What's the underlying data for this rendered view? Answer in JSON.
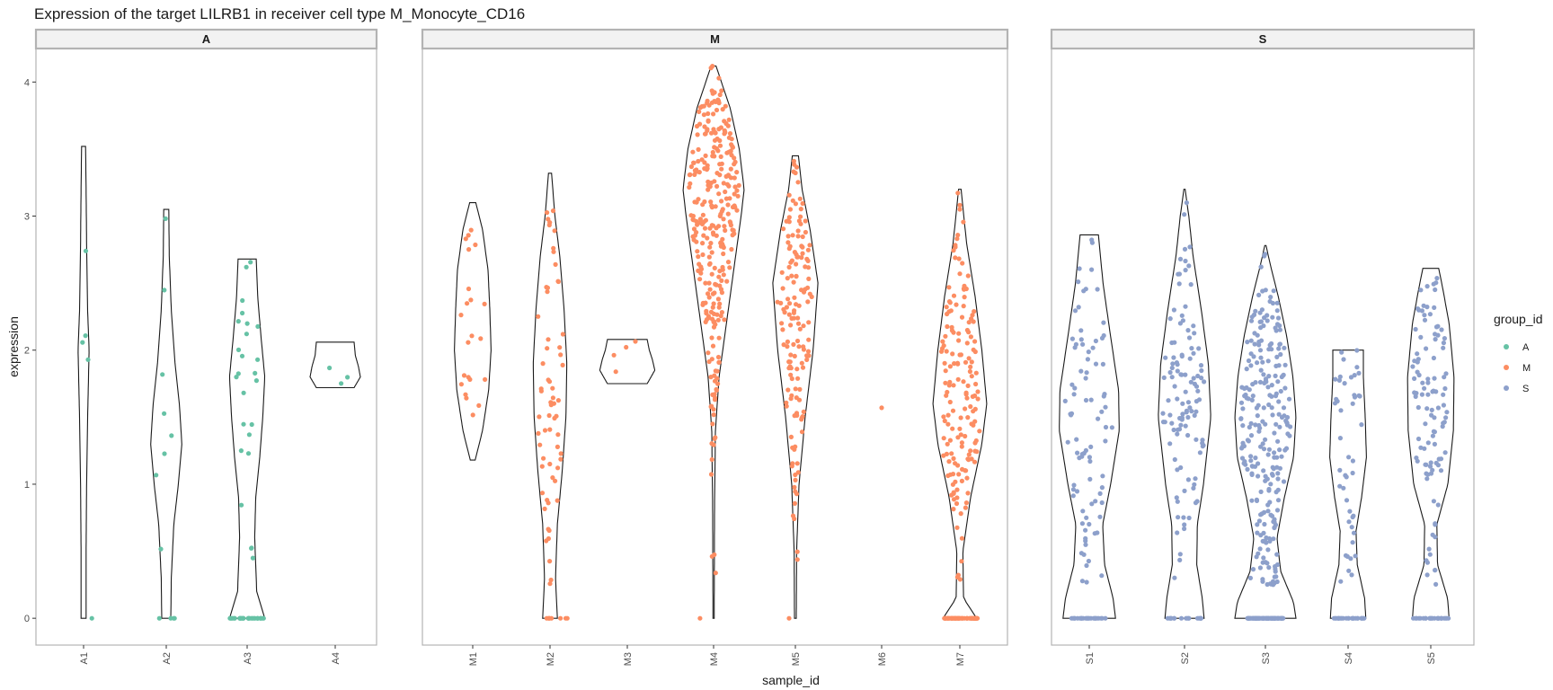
{
  "chart_data": {
    "type": "violin",
    "title": "Expression of the target LILRB1 in receiver cell type M_Monocyte_CD16",
    "xlabel": "sample_id",
    "ylabel": "expression",
    "ylim": [
      -0.2,
      4.25
    ],
    "y_ticks": [
      0,
      1,
      2,
      3,
      4
    ],
    "grid": false,
    "legend": {
      "title": "group_id",
      "position": "right",
      "entries": [
        {
          "label": "A",
          "color": "#66C2A5"
        },
        {
          "label": "M",
          "color": "#FC8D62"
        },
        {
          "label": "S",
          "color": "#8DA0CB"
        }
      ]
    },
    "facets": [
      {
        "label": "A",
        "color": "#66C2A5",
        "samples": [
          {
            "id": "A1",
            "min": 0,
            "max": 3.52,
            "n_zero": 1,
            "n_points": 5,
            "profile": [
              [
                0,
                0.1
              ],
              [
                0.5,
                0.1
              ],
              [
                1.0,
                0.12
              ],
              [
                1.5,
                0.16
              ],
              [
                2.0,
                0.22
              ],
              [
                2.3,
                0.16
              ],
              [
                2.8,
                0.12
              ],
              [
                3.2,
                0.1
              ],
              [
                3.52,
                0.08
              ]
            ]
          },
          {
            "id": "A2",
            "min": 0,
            "max": 3.05,
            "n_zero": 4,
            "n_points": 12,
            "profile": [
              [
                0,
                0.18
              ],
              [
                0.3,
                0.2
              ],
              [
                0.7,
                0.3
              ],
              [
                1.0,
                0.48
              ],
              [
                1.3,
                0.62
              ],
              [
                1.6,
                0.52
              ],
              [
                1.9,
                0.35
              ],
              [
                2.3,
                0.2
              ],
              [
                2.7,
                0.12
              ],
              [
                3.05,
                0.1
              ]
            ]
          },
          {
            "id": "A3",
            "min": 0,
            "max": 2.68,
            "n_zero": 30,
            "n_points": 55,
            "profile": [
              [
                0,
                0.7
              ],
              [
                0.2,
                0.38
              ],
              [
                0.6,
                0.3
              ],
              [
                0.9,
                0.34
              ],
              [
                1.2,
                0.5
              ],
              [
                1.5,
                0.62
              ],
              [
                1.8,
                0.7
              ],
              [
                2.1,
                0.55
              ],
              [
                2.4,
                0.42
              ],
              [
                2.68,
                0.36
              ]
            ]
          },
          {
            "id": "A4",
            "min": 1.72,
            "max": 2.06,
            "n_zero": 0,
            "n_points": 3,
            "profile": [
              [
                1.72,
                0.75
              ],
              [
                1.8,
                1.0
              ],
              [
                1.88,
                0.92
              ],
              [
                1.96,
                0.8
              ],
              [
                2.06,
                0.75
              ]
            ]
          }
        ]
      },
      {
        "label": "M",
        "color": "#FC8D62",
        "samples": [
          {
            "id": "M1",
            "min": 1.18,
            "max": 3.1,
            "n_zero": 0,
            "n_points": 22,
            "profile": [
              [
                1.18,
                0.08
              ],
              [
                1.4,
                0.32
              ],
              [
                1.7,
                0.52
              ],
              [
                2.0,
                0.6
              ],
              [
                2.3,
                0.56
              ],
              [
                2.6,
                0.5
              ],
              [
                2.9,
                0.32
              ],
              [
                3.1,
                0.1
              ]
            ]
          },
          {
            "id": "M2",
            "min": 0,
            "max": 3.32,
            "n_zero": 8,
            "n_points": 70,
            "profile": [
              [
                0,
                0.24
              ],
              [
                0.3,
                0.18
              ],
              [
                0.7,
                0.24
              ],
              [
                1.1,
                0.4
              ],
              [
                1.5,
                0.52
              ],
              [
                1.9,
                0.55
              ],
              [
                2.3,
                0.46
              ],
              [
                2.7,
                0.32
              ],
              [
                3.0,
                0.16
              ],
              [
                3.32,
                0.05
              ]
            ]
          },
          {
            "id": "M3",
            "min": 1.75,
            "max": 2.08,
            "n_zero": 0,
            "n_points": 4,
            "profile": [
              [
                1.75,
                0.65
              ],
              [
                1.85,
                0.9
              ],
              [
                1.93,
                0.82
              ],
              [
                2.0,
                0.72
              ],
              [
                2.08,
                0.65
              ]
            ]
          },
          {
            "id": "M4",
            "min": 0,
            "max": 4.12,
            "n_zero": 1,
            "n_points": 300,
            "profile": [
              [
                0,
                0.02
              ],
              [
                0.8,
                0.03
              ],
              [
                1.4,
                0.06
              ],
              [
                1.8,
                0.18
              ],
              [
                2.2,
                0.42
              ],
              [
                2.6,
                0.66
              ],
              [
                3.0,
                0.9
              ],
              [
                3.2,
                1.0
              ],
              [
                3.5,
                0.84
              ],
              [
                3.8,
                0.55
              ],
              [
                4.12,
                0.08
              ]
            ]
          },
          {
            "id": "M5",
            "min": 0,
            "max": 3.45,
            "n_zero": 1,
            "n_points": 150,
            "profile": [
              [
                0,
                0.03
              ],
              [
                0.5,
                0.04
              ],
              [
                1.0,
                0.12
              ],
              [
                1.5,
                0.32
              ],
              [
                2.0,
                0.58
              ],
              [
                2.5,
                0.74
              ],
              [
                2.9,
                0.48
              ],
              [
                3.2,
                0.22
              ],
              [
                3.45,
                0.1
              ]
            ]
          },
          {
            "id": "M6",
            "min": 1.57,
            "max": 1.57,
            "n_zero": 0,
            "n_points": 1,
            "profile": []
          },
          {
            "id": "M7",
            "min": 0,
            "max": 3.2,
            "n_zero": 60,
            "n_points": 220,
            "profile": [
              [
                0,
                0.55
              ],
              [
                0.15,
                0.12
              ],
              [
                0.5,
                0.1
              ],
              [
                0.9,
                0.35
              ],
              [
                1.3,
                0.72
              ],
              [
                1.6,
                0.88
              ],
              [
                2.0,
                0.72
              ],
              [
                2.4,
                0.5
              ],
              [
                2.8,
                0.22
              ],
              [
                3.2,
                0.04
              ]
            ]
          }
        ]
      },
      {
        "label": "S",
        "color": "#8DA0CB",
        "samples": [
          {
            "id": "S1",
            "min": 0,
            "max": 2.86,
            "n_zero": 25,
            "n_points": 110,
            "profile": [
              [
                0,
                0.86
              ],
              [
                0.15,
                0.78
              ],
              [
                0.4,
                0.5
              ],
              [
                0.7,
                0.44
              ],
              [
                1.0,
                0.7
              ],
              [
                1.4,
                0.98
              ],
              [
                1.7,
                0.96
              ],
              [
                2.1,
                0.7
              ],
              [
                2.5,
                0.45
              ],
              [
                2.86,
                0.3
              ]
            ]
          },
          {
            "id": "S2",
            "min": 0,
            "max": 3.2,
            "n_zero": 18,
            "n_points": 130,
            "profile": [
              [
                0,
                0.64
              ],
              [
                0.15,
                0.58
              ],
              [
                0.4,
                0.4
              ],
              [
                0.7,
                0.42
              ],
              [
                1.0,
                0.62
              ],
              [
                1.5,
                0.86
              ],
              [
                1.9,
                0.78
              ],
              [
                2.3,
                0.55
              ],
              [
                2.7,
                0.28
              ],
              [
                3.0,
                0.14
              ],
              [
                3.2,
                0.02
              ]
            ]
          },
          {
            "id": "S3",
            "min": 0,
            "max": 2.78,
            "n_zero": 80,
            "n_points": 330,
            "profile": [
              [
                0,
                1.0
              ],
              [
                0.12,
                0.92
              ],
              [
                0.35,
                0.5
              ],
              [
                0.6,
                0.38
              ],
              [
                0.9,
                0.62
              ],
              [
                1.2,
                0.92
              ],
              [
                1.5,
                1.0
              ],
              [
                1.8,
                0.9
              ],
              [
                2.1,
                0.7
              ],
              [
                2.4,
                0.42
              ],
              [
                2.6,
                0.2
              ],
              [
                2.78,
                0.02
              ]
            ]
          },
          {
            "id": "S4",
            "min": 0,
            "max": 2.0,
            "n_zero": 25,
            "n_points": 70,
            "profile": [
              [
                0,
                0.58
              ],
              [
                0.15,
                0.54
              ],
              [
                0.4,
                0.3
              ],
              [
                0.65,
                0.26
              ],
              [
                0.9,
                0.44
              ],
              [
                1.2,
                0.6
              ],
              [
                1.5,
                0.56
              ],
              [
                1.8,
                0.5
              ],
              [
                2.0,
                0.5
              ]
            ]
          },
          {
            "id": "S5",
            "min": 0,
            "max": 2.61,
            "n_zero": 25,
            "n_points": 130,
            "profile": [
              [
                0,
                0.6
              ],
              [
                0.15,
                0.55
              ],
              [
                0.4,
                0.22
              ],
              [
                0.7,
                0.2
              ],
              [
                1.0,
                0.56
              ],
              [
                1.4,
                0.74
              ],
              [
                1.8,
                0.76
              ],
              [
                2.2,
                0.6
              ],
              [
                2.45,
                0.4
              ],
              [
                2.61,
                0.26
              ]
            ]
          }
        ]
      }
    ]
  }
}
